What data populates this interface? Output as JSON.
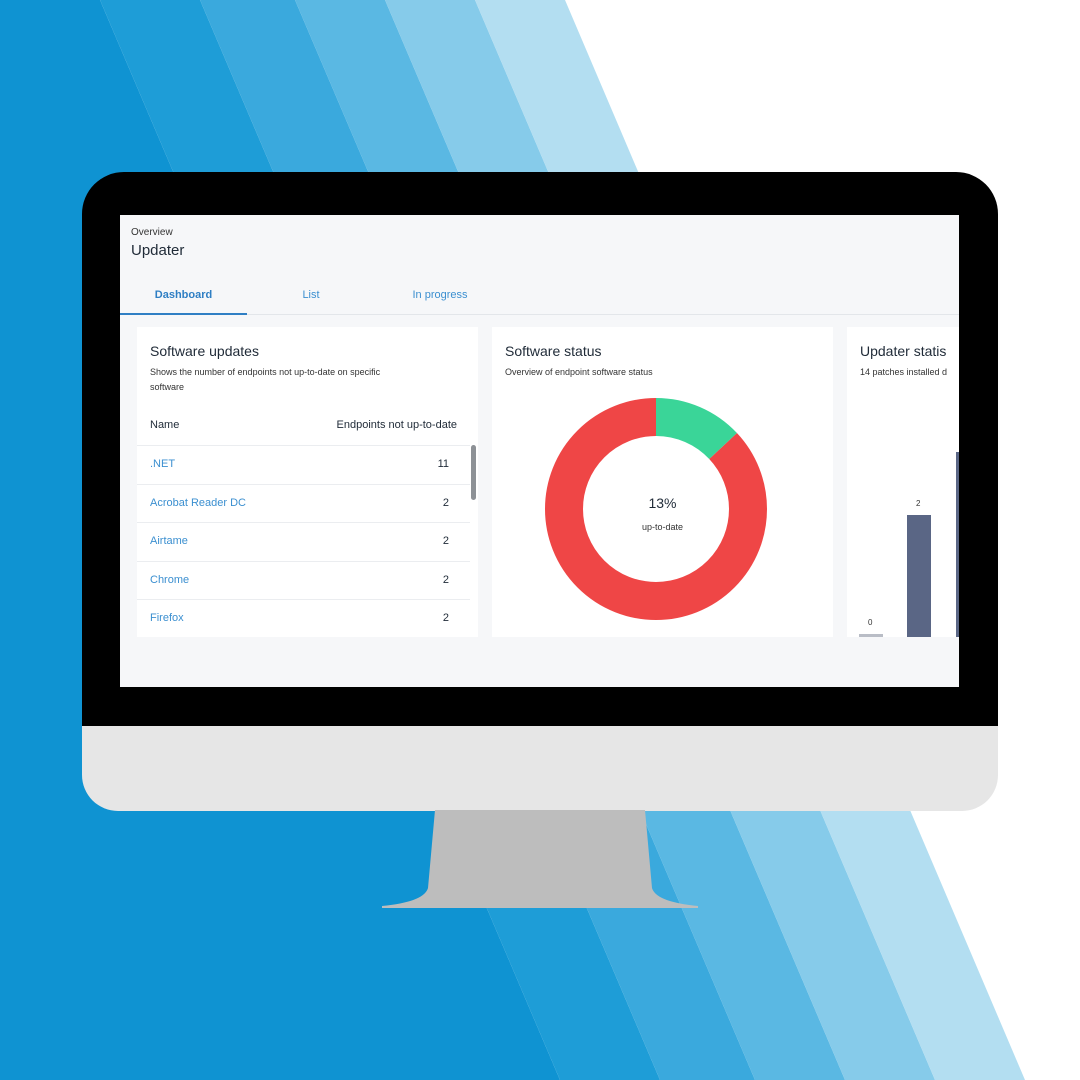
{
  "colors": {
    "accent": "#2f7fc4",
    "link": "#3b8fd0",
    "donut_outdated": "#ef4646",
    "donut_uptodate": "#3ad598",
    "bar_fill": "#5a6685",
    "bar_zero": "#b9bdc6"
  },
  "header": {
    "breadcrumb": "Overview",
    "title": "Updater"
  },
  "tabs": [
    {
      "label": "Dashboard",
      "active": true
    },
    {
      "label": "List",
      "active": false
    },
    {
      "label": "In progress",
      "active": false
    }
  ],
  "software_updates": {
    "title": "Software updates",
    "subtitle_line1": "Shows the number of endpoints not up-to-date on specific",
    "subtitle_line2": "software",
    "col_name": "Name",
    "col_count": "Endpoints not up-to-date",
    "rows": [
      {
        "name": ".NET",
        "count": "11"
      },
      {
        "name": "Acrobat Reader DC",
        "count": "2"
      },
      {
        "name": "Airtame",
        "count": "2"
      },
      {
        "name": "Chrome",
        "count": "2"
      },
      {
        "name": "Firefox",
        "count": "2"
      }
    ]
  },
  "software_status": {
    "title": "Software status",
    "subtitle": "Overview of endpoint software status",
    "percent_label": "13%",
    "center_label": "up-to-date",
    "up_to_date_fraction": 0.13
  },
  "updater_status": {
    "title": "Updater statis",
    "subtitle": "14 patches installed d",
    "bars": [
      {
        "value": 0,
        "label": "0"
      },
      {
        "value": 2,
        "label": "2"
      }
    ]
  }
}
